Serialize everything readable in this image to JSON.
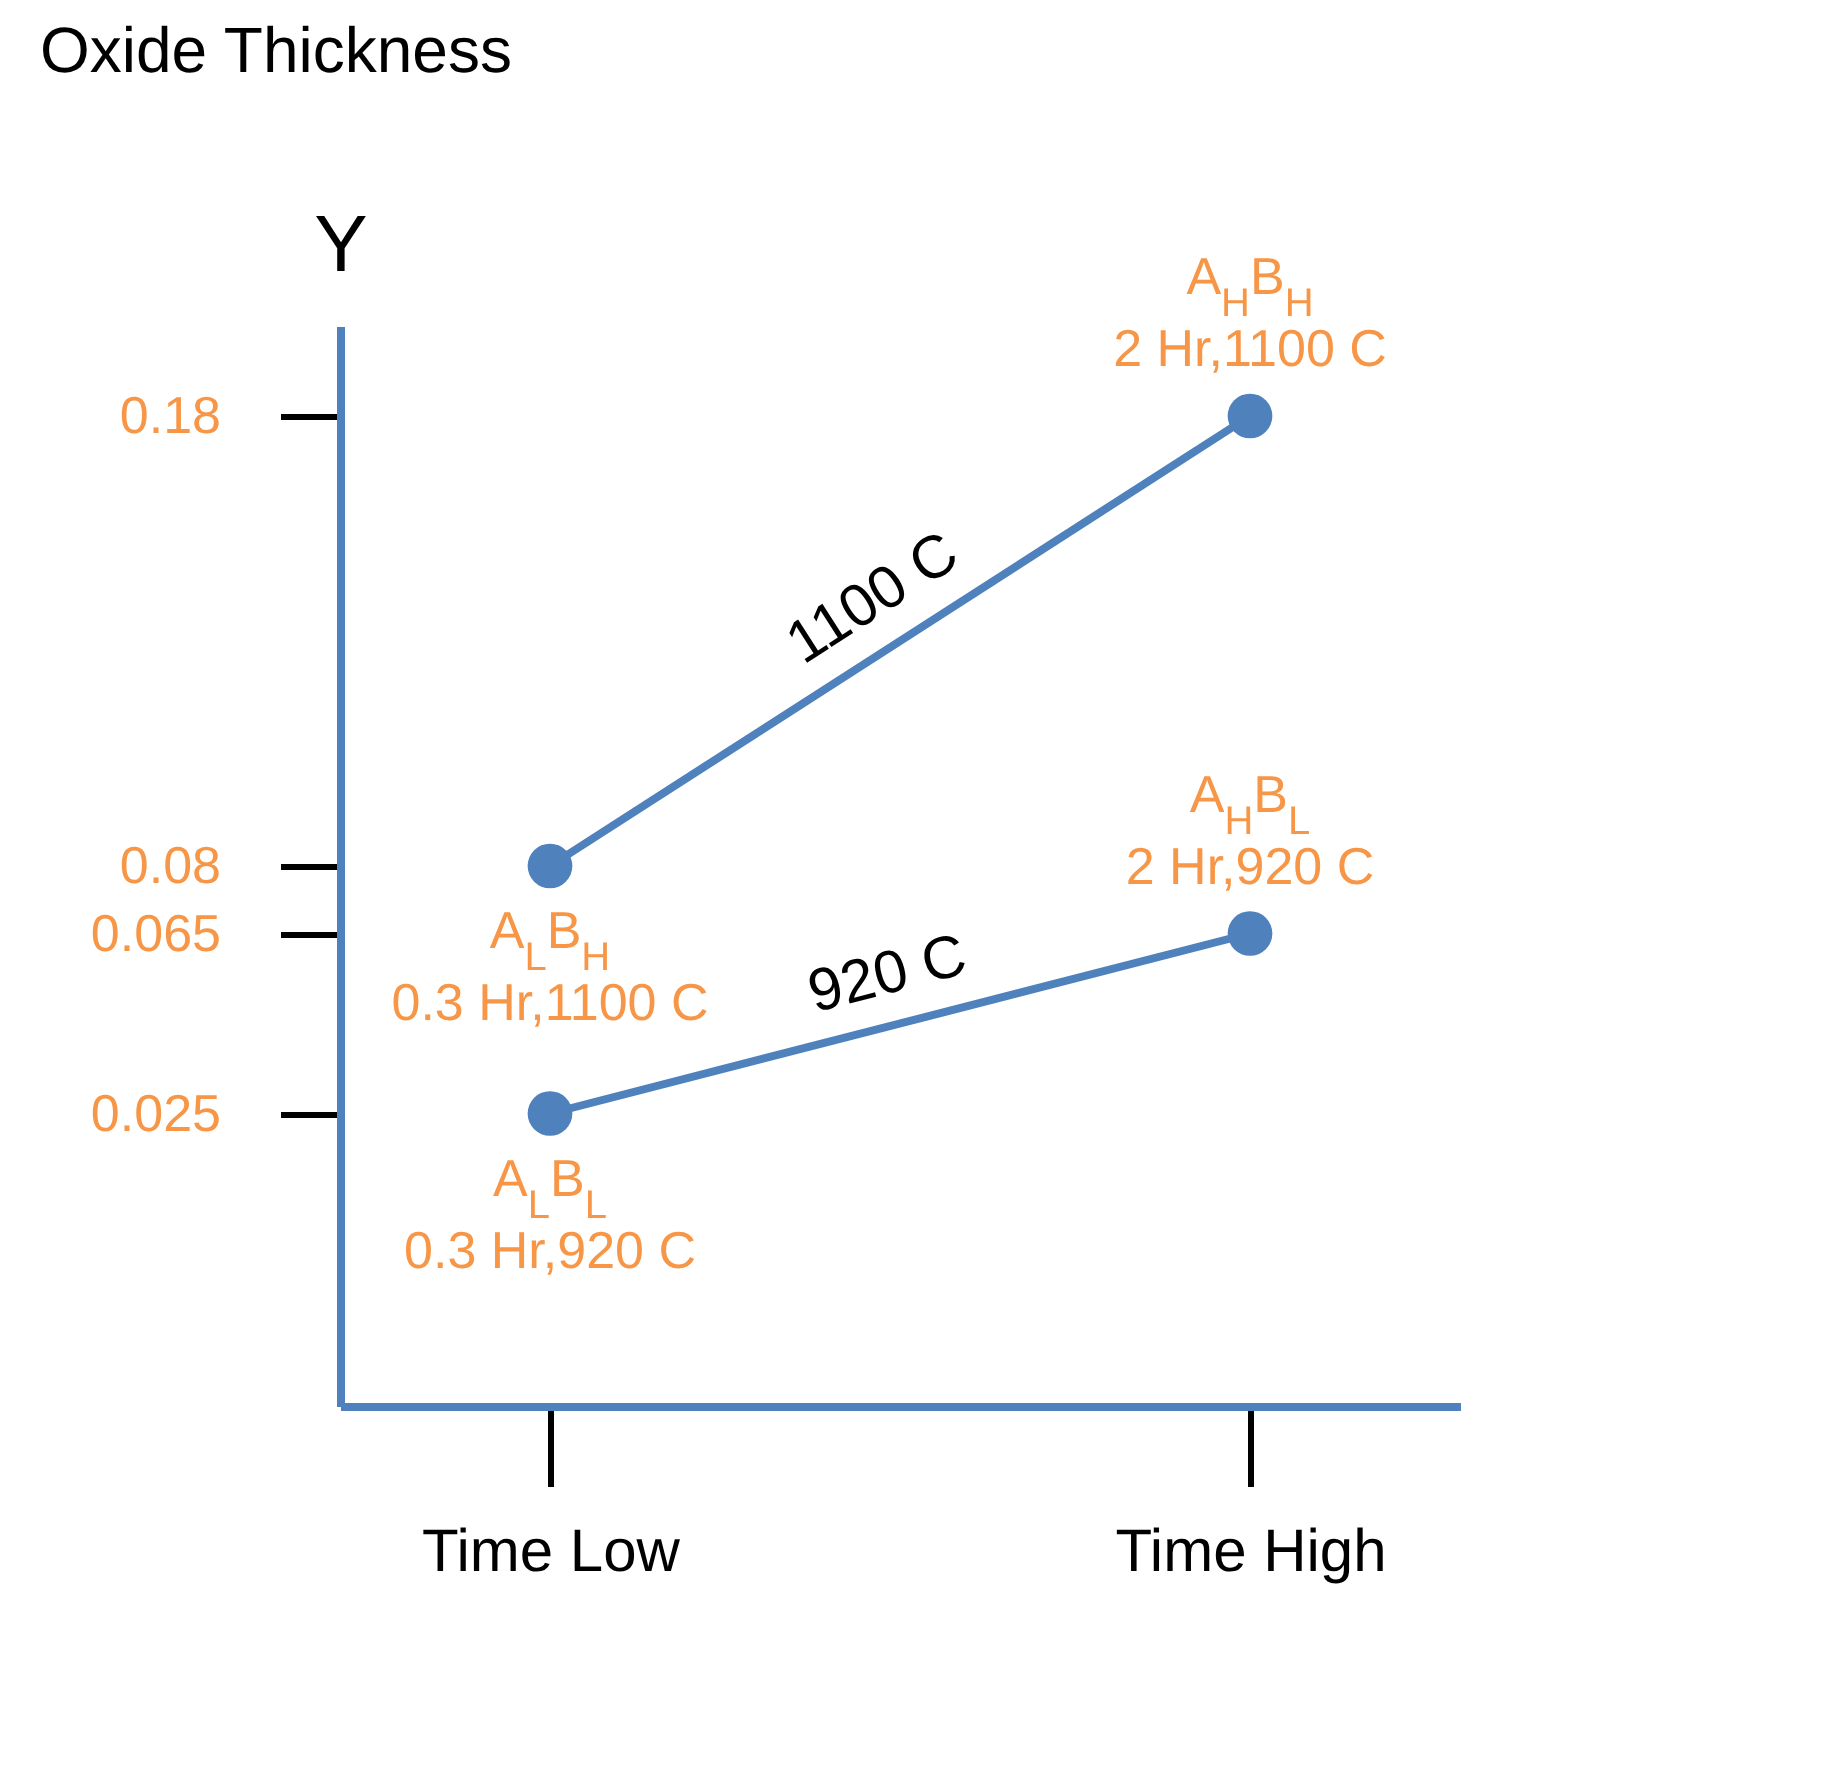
{
  "chart_data": {
    "type": "line",
    "title": "Oxide Thickness",
    "ylabel": "Y",
    "categories": [
      "Time Low",
      "Time High"
    ],
    "series": [
      {
        "name": "1100 C",
        "color": "#4f81bd",
        "values": [
          0.08,
          0.18
        ]
      },
      {
        "name": "920 C",
        "color": "#4f81bd",
        "values": [
          0.025,
          0.065
        ]
      }
    ],
    "ylim": [
      -0.04,
      0.2
    ],
    "yticks": [
      0.025,
      0.065,
      0.08,
      0.18
    ],
    "marker": "circle",
    "line_style": "solid",
    "grid": false,
    "legend": false,
    "annotations": [
      {
        "text": "A$_{L}$B$_{H}$",
        "x": "Time Low",
        "y": 0.08
      },
      {
        "text": "0.3 Hr,1100 C",
        "x": "Time Low",
        "y": 0.08
      },
      {
        "text": "A$_{H}$B$_{H}$",
        "x": "Time High",
        "y": 0.18
      },
      {
        "text": "2 Hr,1100 C",
        "x": "Time High",
        "y": 0.18
      },
      {
        "text": "A$_{H}$B$_{L}$",
        "x": "Time High",
        "y": 0.065
      },
      {
        "text": "2 Hr,920 C",
        "x": "Time High",
        "y": 0.065
      },
      {
        "text": "A$_{L}$B$_{L}$",
        "x": "Time Low",
        "y": 0.025
      },
      {
        "text": "0.3 Hr,920 C",
        "x": "Time Low",
        "y": 0.025
      }
    ]
  }
}
